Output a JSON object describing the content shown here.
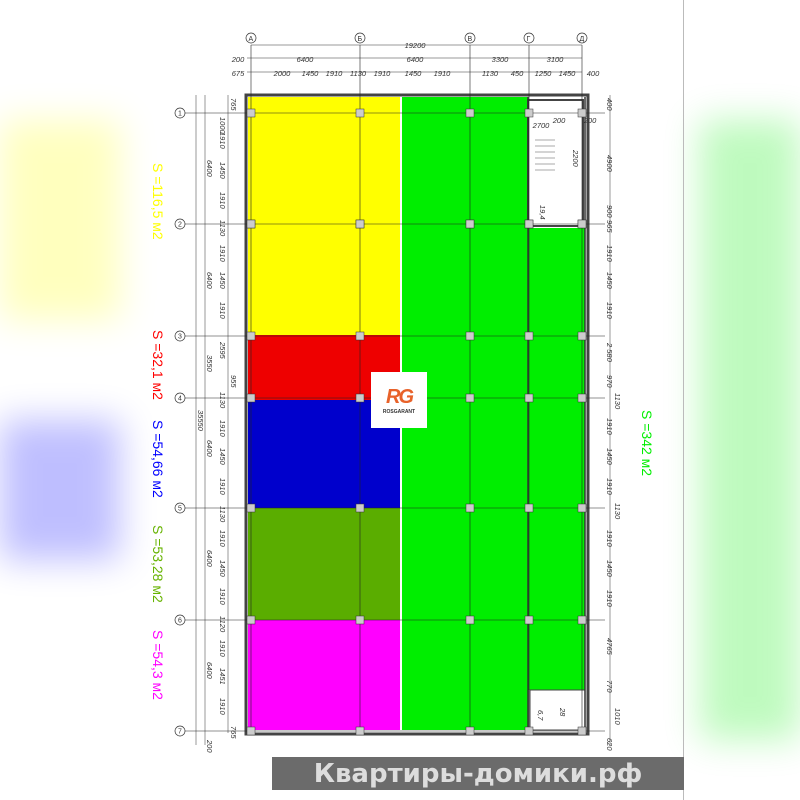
{
  "axes_letters": [
    "А",
    "Б",
    "В",
    "Г",
    "Д"
  ],
  "axes_numbers": [
    "1",
    "2",
    "3",
    "4",
    "5",
    "6",
    "7"
  ],
  "top_dims": {
    "total": "19200",
    "row2": [
      "200",
      "6400",
      "6400",
      "3300",
      "3100"
    ],
    "row3": [
      "675",
      "2000",
      "1450",
      "1910",
      "1130",
      "1910",
      "1450",
      "1910",
      "1130",
      "450",
      "1250",
      "1450",
      "400"
    ]
  },
  "left_dims": {
    "total": "35550",
    "bays": [
      "6400",
      "6400",
      "3550",
      "6400",
      "6400",
      "6400",
      "200"
    ],
    "openings": [
      "765",
      "1000",
      "1910",
      "1450",
      "1910",
      "1130",
      "1910",
      "1450",
      "1910",
      "2595",
      "955",
      "1130",
      "1910",
      "1450",
      "1910",
      "1130",
      "1910",
      "1450",
      "1910",
      "1120",
      "1910",
      "1451",
      "1910",
      "765"
    ]
  },
  "right_dims": [
    "400",
    "2700",
    "200",
    "200",
    "4900",
    "2200",
    "900",
    "965",
    "1910",
    "1450",
    "1910",
    "2 580",
    "970",
    "1130",
    "1910",
    "1450",
    "1910",
    "1130",
    "1910",
    "1450",
    "1910",
    "4765",
    "770",
    "1010",
    "620"
  ],
  "room_labels": [
    "19,4",
    "28",
    "6,7"
  ],
  "areas": [
    {
      "label": "S =116,5 м2",
      "color": "#ffff00"
    },
    {
      "label": "S =32,1 м2",
      "color": "#ff0000"
    },
    {
      "label": "S =54,66 м2",
      "color": "#0000ff"
    },
    {
      "label": "S =53,28 м2",
      "color": "#66b300"
    },
    {
      "label": "S =54,3 м2",
      "color": "#ff00ff"
    },
    {
      "label": "S =342 м2",
      "color": "#00ee00"
    }
  ],
  "zone_colors": {
    "yellow": "#ffff00",
    "red": "#ee0000",
    "blue": "#0000cc",
    "olive": "#5aad00",
    "magenta": "#ff00ff",
    "green": "#00ee00"
  },
  "logo": {
    "mark": "RG",
    "name": "ROSGARANT"
  },
  "watermark": "Квартиры-домики.рф"
}
